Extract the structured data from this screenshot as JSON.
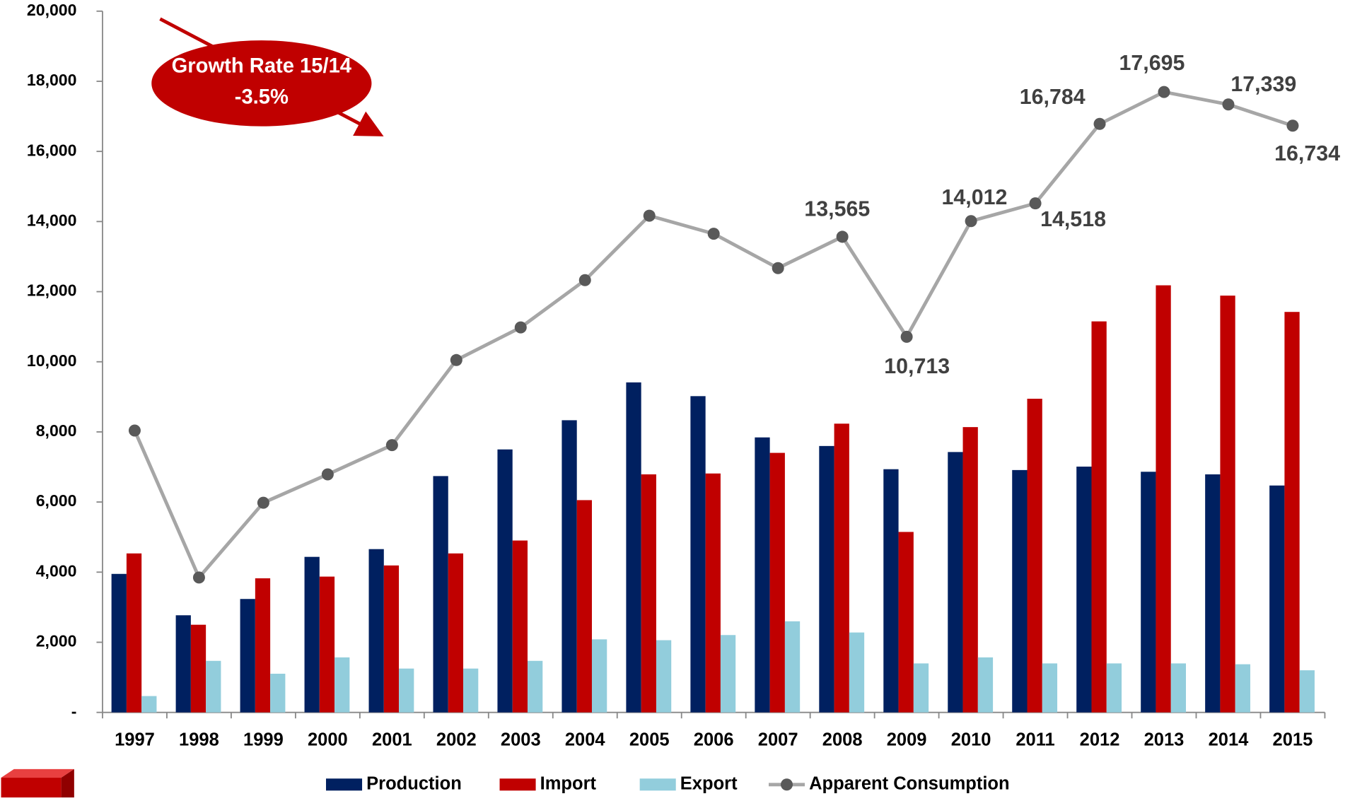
{
  "chart_data": {
    "type": "bar_line",
    "categories": [
      "1997",
      "1998",
      "1999",
      "2000",
      "2001",
      "2002",
      "2003",
      "2004",
      "2005",
      "2006",
      "2007",
      "2008",
      "2009",
      "2010",
      "2011",
      "2012",
      "2013",
      "2014",
      "2015"
    ],
    "series": [
      {
        "name": "Production",
        "type": "bar",
        "color": "#002060",
        "values": [
          3950,
          2770,
          3235,
          4436,
          4657,
          6740,
          7500,
          8333,
          9412,
          9020,
          7843,
          7598,
          6936,
          7426,
          6912,
          7010,
          6863,
          6789,
          6471
        ]
      },
      {
        "name": "Import",
        "type": "bar",
        "color": "#c00000",
        "values": [
          4534,
          2500,
          3824,
          3873,
          4191,
          4534,
          4902,
          6054,
          6789,
          6814,
          7402,
          8235,
          5147,
          8137,
          8946,
          11152,
          12181,
          11887,
          11422
        ]
      },
      {
        "name": "Export",
        "type": "bar",
        "color": "#92cddc",
        "values": [
          466,
          1470,
          1103,
          1569,
          1250,
          1250,
          1470,
          2083,
          2059,
          2206,
          2598,
          2279,
          1397,
          1569,
          1397,
          1397,
          1397,
          1373,
          1201
        ]
      },
      {
        "name": "Apparent Consumption",
        "type": "line",
        "color": "#a6a6a6",
        "marker_color": "#595959",
        "values": [
          8039,
          3848,
          5980,
          6789,
          7623,
          10049,
          10980,
          12328,
          14167,
          13652,
          12672,
          13565,
          10713,
          14012,
          14518,
          16784,
          17695,
          17339,
          16734
        ],
        "value_labels": [
          null,
          null,
          null,
          null,
          null,
          null,
          null,
          null,
          null,
          null,
          null,
          "13,565",
          "10,713",
          "14,012",
          "14,518",
          "16,784",
          "17,695",
          "17,339",
          "16,734"
        ]
      }
    ],
    "ylim": [
      0,
      20000
    ],
    "yticks": [
      {
        "value": 0,
        "label": "-"
      },
      {
        "value": 2000,
        "label": "2,000"
      },
      {
        "value": 4000,
        "label": "4,000"
      },
      {
        "value": 6000,
        "label": "6,000"
      },
      {
        "value": 8000,
        "label": "8,000"
      },
      {
        "value": 10000,
        "label": "10,000"
      },
      {
        "value": 12000,
        "label": "12,000"
      },
      {
        "value": 14000,
        "label": "14,000"
      },
      {
        "value": 16000,
        "label": "16,000"
      },
      {
        "value": 18000,
        "label": "18,000"
      },
      {
        "value": 20000,
        "label": "20,000"
      }
    ],
    "annotations": [
      "Growth Rate 15/14",
      "-3.5%"
    ],
    "legend": "bottom"
  }
}
